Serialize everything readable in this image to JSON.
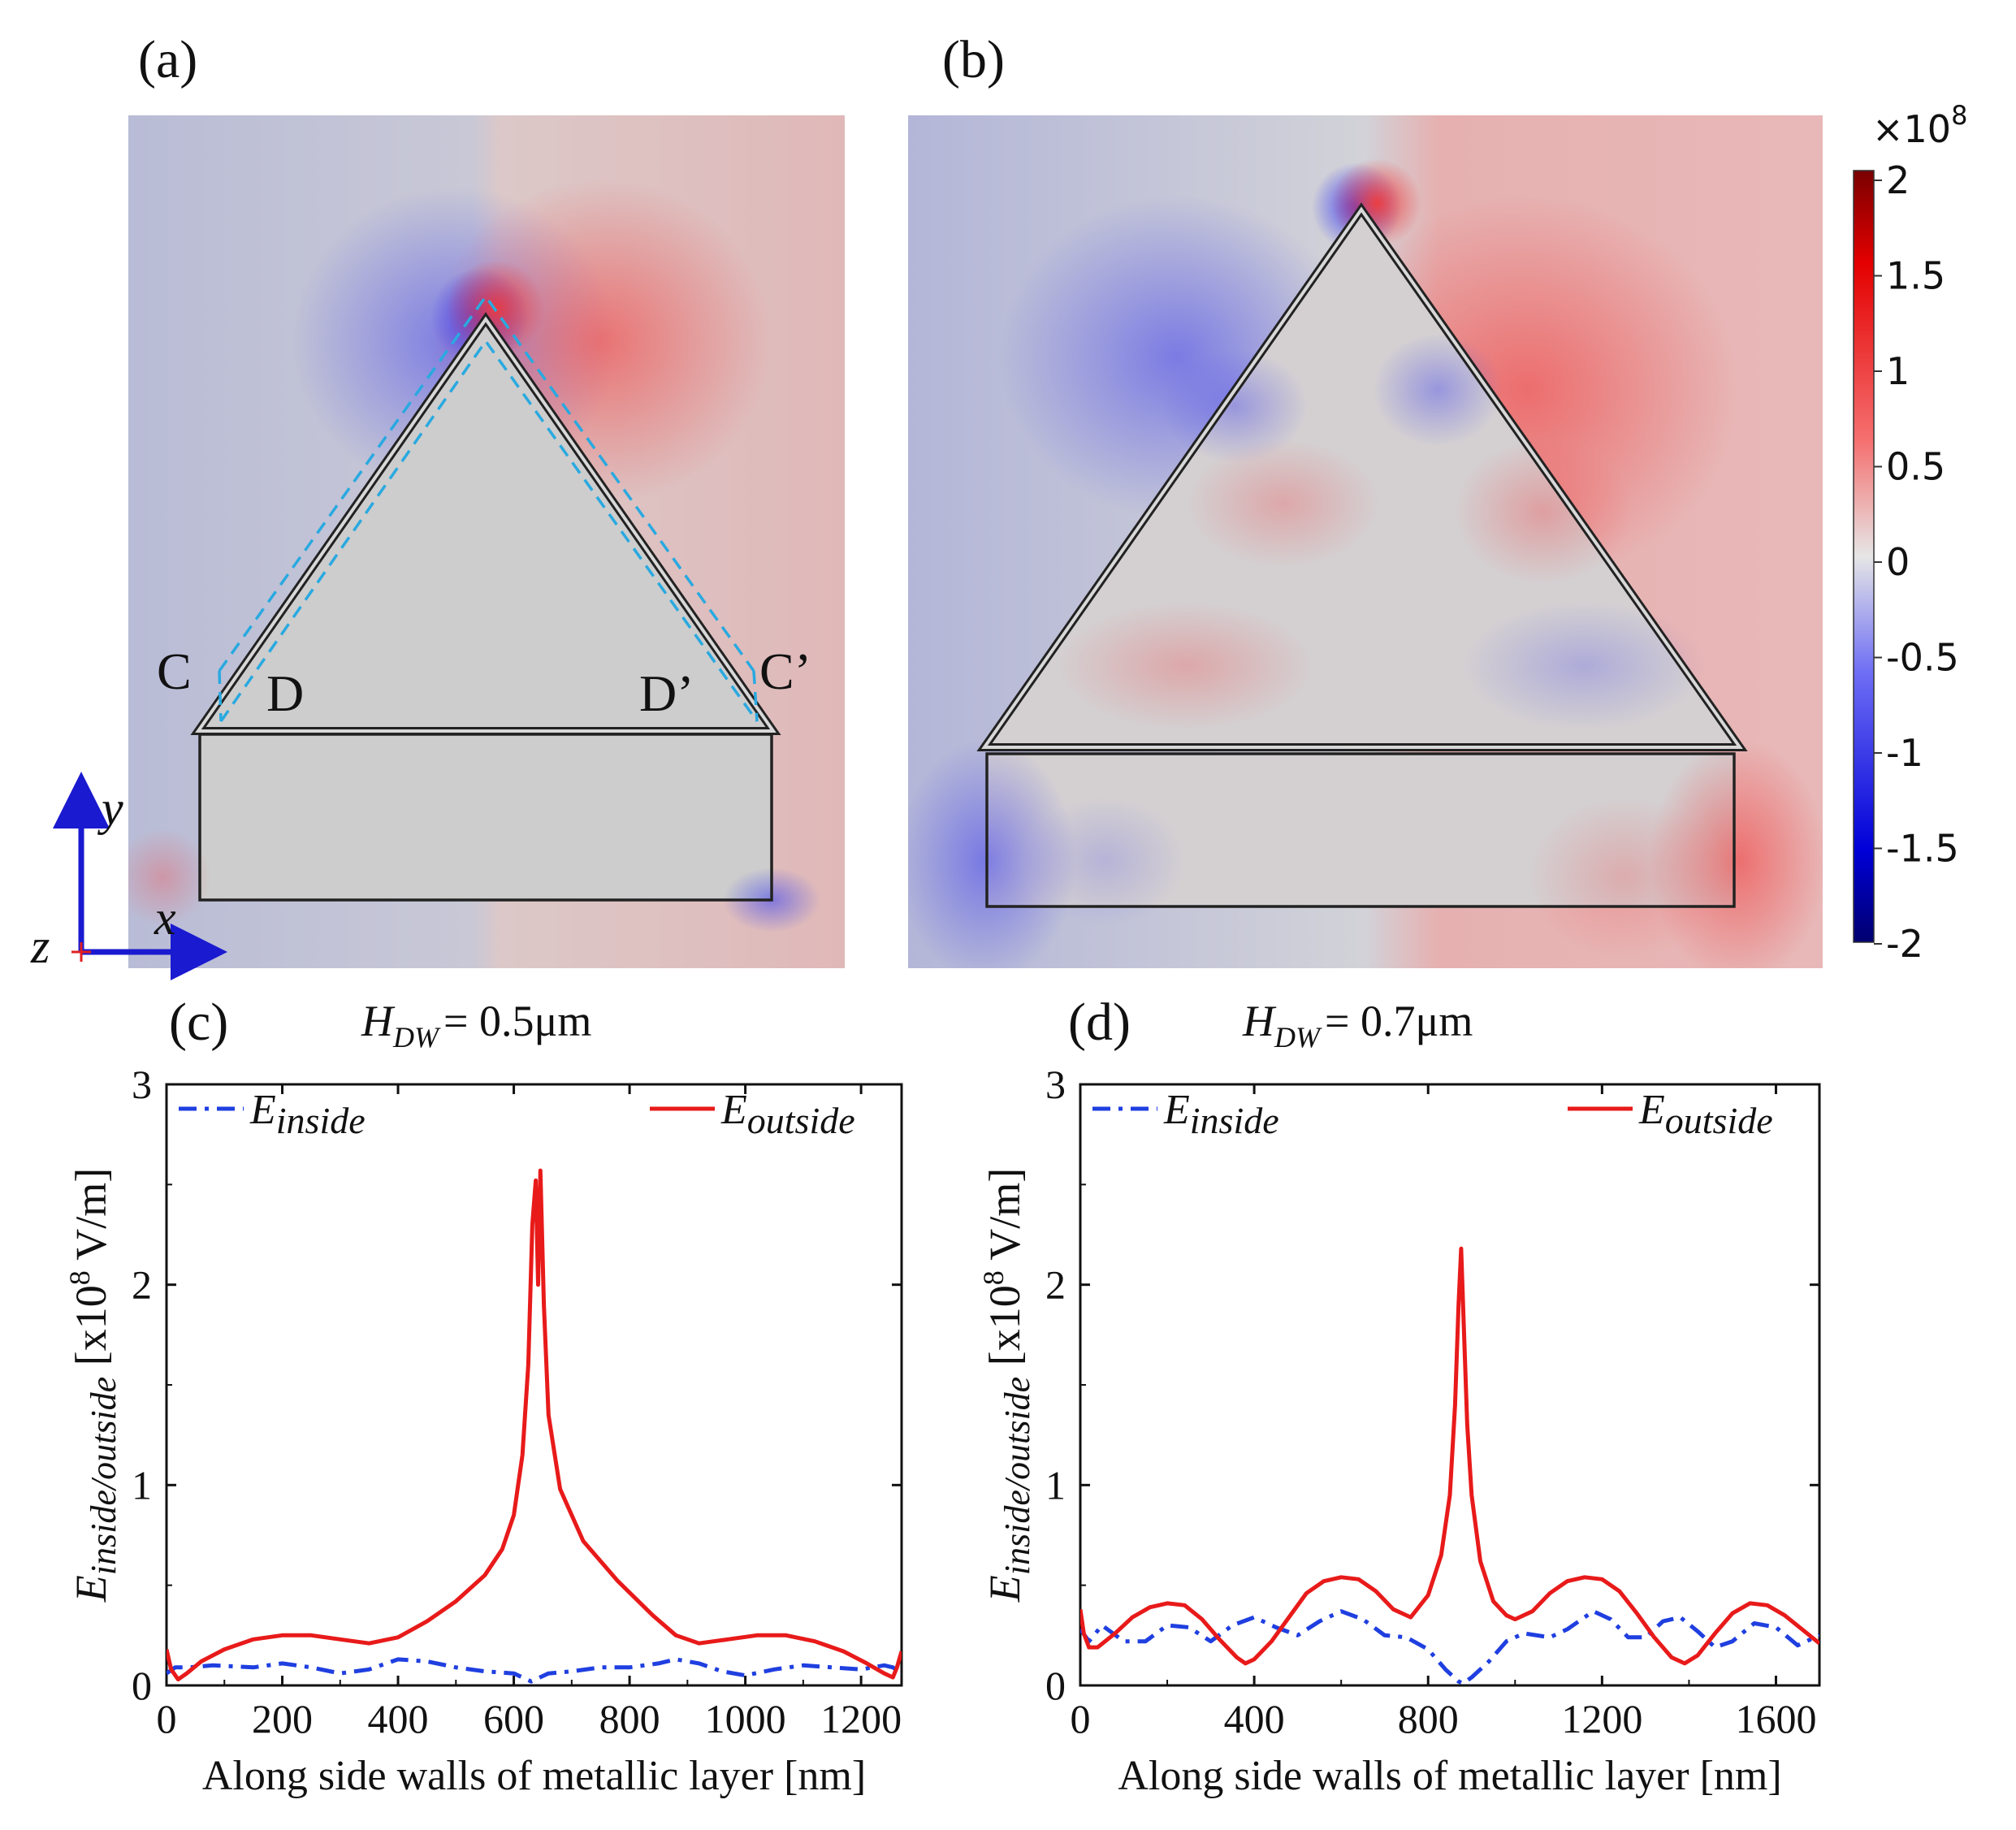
{
  "panels": {
    "a": {
      "label": "(a)",
      "corner_C": "C",
      "corner_D": "D",
      "corner_D_prime": "D’",
      "corner_C_prime": "C’"
    },
    "b": {
      "label": "(b)"
    },
    "c": {
      "label": "(c)",
      "title_H": "H",
      "title_sub": "DW",
      "title_value": "= 0.5μm"
    },
    "d": {
      "label": "(d)",
      "title_H": "H",
      "title_sub": "DW",
      "title_value": "= 0.7μm"
    }
  },
  "axes_indicator": {
    "y": "y",
    "x": "x",
    "z": "z"
  },
  "colorbar": {
    "exponent_prefix": "×10",
    "exponent": "8",
    "ticks": [
      "2",
      "1.5",
      "1",
      "0.5",
      "0",
      "-0.5",
      "-1",
      "-1.5",
      "-2"
    ],
    "colors": {
      "max": "#7a0000",
      "pos": "#ff2a2a",
      "zero": "#e6e6e6",
      "neg": "#1a1aff",
      "min": "#00006e"
    }
  },
  "colors": {
    "inside": "#1f3fe0",
    "outside": "#e81a1a",
    "dashed": "#29a9e0",
    "axis_arrow": "#1a1ad0"
  },
  "chart_data": [
    {
      "type": "line",
      "panel": "c",
      "xlabel": "Along side walls of metallic layer [nm]",
      "ylabel_main": "E",
      "ylabel_sub": "inside/outside",
      "ylabel_unit_a": " [x10",
      "ylabel_unit_exp": "8",
      "ylabel_unit_b": " V/m]",
      "xlim": [
        0,
        1270
      ],
      "ylim": [
        0,
        3
      ],
      "xticks": [
        "0",
        "200",
        "400",
        "600",
        "800",
        "1000",
        "1200"
      ],
      "yticks": [
        "0",
        "1",
        "2",
        "3"
      ],
      "legend": [
        {
          "name_main": "E",
          "name_sub": "inside",
          "style": "dash-dot",
          "color": "#1f3fe0"
        },
        {
          "name_main": "E",
          "name_sub": "outside",
          "style": "solid",
          "color": "#e81a1a"
        }
      ],
      "series": [
        {
          "name": "E inside",
          "x": [
            0,
            15,
            40,
            80,
            150,
            200,
            250,
            300,
            350,
            400,
            450,
            500,
            550,
            600,
            630,
            660,
            700,
            750,
            800,
            850,
            880,
            920,
            960,
            1000,
            1050,
            1100,
            1150,
            1200,
            1240,
            1255,
            1270
          ],
          "y": [
            0.06,
            0.09,
            0.09,
            0.1,
            0.09,
            0.11,
            0.09,
            0.06,
            0.08,
            0.13,
            0.12,
            0.09,
            0.07,
            0.06,
            0.02,
            0.06,
            0.07,
            0.09,
            0.09,
            0.11,
            0.13,
            0.11,
            0.07,
            0.05,
            0.08,
            0.1,
            0.09,
            0.08,
            0.1,
            0.09,
            0.06
          ]
        },
        {
          "name": "E outside",
          "x": [
            0,
            8,
            20,
            35,
            60,
            100,
            150,
            200,
            250,
            300,
            350,
            400,
            450,
            500,
            550,
            580,
            600,
            615,
            625,
            632,
            638,
            642,
            646,
            652,
            660,
            680,
            720,
            780,
            840,
            880,
            920,
            970,
            1020,
            1070,
            1120,
            1170,
            1210,
            1240,
            1255,
            1262,
            1270
          ],
          "y": [
            0.18,
            0.08,
            0.03,
            0.06,
            0.12,
            0.18,
            0.23,
            0.25,
            0.25,
            0.23,
            0.21,
            0.24,
            0.32,
            0.42,
            0.55,
            0.68,
            0.85,
            1.15,
            1.6,
            2.3,
            2.52,
            2.0,
            2.57,
            1.9,
            1.35,
            0.98,
            0.72,
            0.52,
            0.35,
            0.25,
            0.21,
            0.23,
            0.25,
            0.25,
            0.22,
            0.17,
            0.11,
            0.06,
            0.04,
            0.09,
            0.17
          ]
        }
      ]
    },
    {
      "type": "line",
      "panel": "d",
      "xlabel": "Along side walls of metallic layer [nm]",
      "ylabel_main": "E",
      "ylabel_sub": "inside/outside",
      "ylabel_unit_a": " [x10",
      "ylabel_unit_exp": "8",
      "ylabel_unit_b": " V/m]",
      "xlim": [
        0,
        1700
      ],
      "ylim": [
        0,
        3
      ],
      "xticks": [
        "0",
        "400",
        "800",
        "1200",
        "1600"
      ],
      "yticks": [
        "0",
        "1",
        "2",
        "3"
      ],
      "legend": [
        {
          "name_main": "E",
          "name_sub": "inside",
          "style": "dash-dot",
          "color": "#1f3fe0"
        },
        {
          "name_main": "E",
          "name_sub": "outside",
          "style": "solid",
          "color": "#e81a1a"
        }
      ],
      "series": [
        {
          "name": "E inside",
          "x": [
            0,
            20,
            50,
            100,
            150,
            200,
            250,
            300,
            350,
            400,
            450,
            500,
            550,
            600,
            650,
            700,
            750,
            800,
            840,
            870,
            880,
            900,
            940,
            980,
            1020,
            1080,
            1120,
            1180,
            1220,
            1260,
            1300,
            1340,
            1380,
            1420,
            1460,
            1500,
            1550,
            1600,
            1650,
            1700
          ],
          "y": [
            0.28,
            0.22,
            0.3,
            0.22,
            0.22,
            0.3,
            0.29,
            0.22,
            0.3,
            0.34,
            0.29,
            0.25,
            0.32,
            0.37,
            0.33,
            0.25,
            0.24,
            0.18,
            0.08,
            0.02,
            0.01,
            0.04,
            0.12,
            0.22,
            0.26,
            0.24,
            0.28,
            0.37,
            0.33,
            0.24,
            0.24,
            0.32,
            0.34,
            0.27,
            0.19,
            0.22,
            0.31,
            0.29,
            0.2,
            0.25
          ]
        },
        {
          "name": "E outside",
          "x": [
            0,
            8,
            20,
            40,
            80,
            120,
            160,
            200,
            240,
            280,
            320,
            360,
            380,
            400,
            440,
            480,
            520,
            560,
            600,
            640,
            680,
            720,
            760,
            800,
            830,
            850,
            862,
            870,
            876,
            882,
            890,
            900,
            920,
            950,
            980,
            1000,
            1040,
            1080,
            1120,
            1160,
            1200,
            1240,
            1280,
            1320,
            1360,
            1390,
            1420,
            1460,
            1500,
            1540,
            1580,
            1620,
            1660,
            1700
          ],
          "y": [
            0.38,
            0.26,
            0.19,
            0.19,
            0.26,
            0.34,
            0.39,
            0.41,
            0.4,
            0.33,
            0.23,
            0.14,
            0.11,
            0.13,
            0.22,
            0.34,
            0.46,
            0.52,
            0.54,
            0.53,
            0.47,
            0.38,
            0.34,
            0.45,
            0.65,
            0.95,
            1.4,
            1.9,
            2.18,
            1.8,
            1.3,
            0.95,
            0.62,
            0.42,
            0.35,
            0.33,
            0.37,
            0.46,
            0.52,
            0.54,
            0.53,
            0.47,
            0.36,
            0.24,
            0.14,
            0.11,
            0.15,
            0.26,
            0.36,
            0.41,
            0.4,
            0.35,
            0.28,
            0.21
          ]
        }
      ]
    }
  ]
}
